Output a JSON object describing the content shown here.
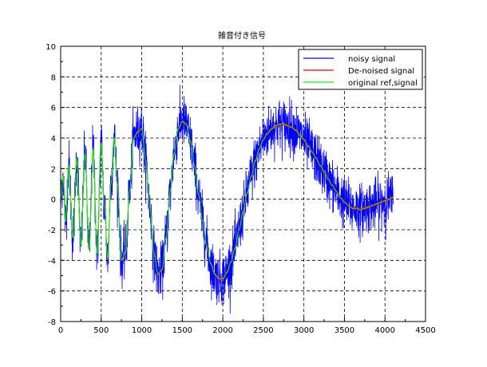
{
  "chart_data": {
    "type": "line",
    "title": "雑音付き信号",
    "xlabel": "",
    "ylabel": "",
    "xlim": [
      0,
      4500
    ],
    "ylim": [
      -8,
      10
    ],
    "x_ticks": [
      0,
      500,
      1000,
      1500,
      2000,
      2500,
      3000,
      3500,
      4000,
      4500
    ],
    "y_ticks": [
      -8,
      -6,
      -4,
      -2,
      0,
      2,
      4,
      6,
      8,
      10
    ],
    "grid": true,
    "legend_position": "top-right",
    "series": [
      {
        "name": "noisy signal",
        "color": "#0000ff",
        "noise_amplitude": 1.1,
        "x": [
          0,
          30,
          60,
          100,
          150,
          200,
          250,
          300,
          350,
          400,
          450,
          500,
          540,
          580,
          620,
          660,
          700,
          750,
          800,
          850,
          900,
          950,
          1000,
          1050,
          1100,
          1150,
          1200,
          1250,
          1300,
          1350,
          1400,
          1450,
          1500,
          1550,
          1600,
          1650,
          1700,
          1750,
          1800,
          1850,
          1900,
          1950,
          2000,
          2050,
          2100,
          2150,
          2200,
          2250,
          2300,
          2350,
          2400,
          2450,
          2500,
          2550,
          2600,
          2650,
          2700,
          2750,
          2800,
          2850,
          2900,
          2950,
          3000,
          3050,
          3100,
          3150,
          3200,
          3250,
          3300,
          3350,
          3400,
          3450,
          3500,
          3550,
          3600,
          3650,
          3700,
          3750,
          3800,
          3850,
          3900,
          3950,
          4000,
          4050,
          4100
        ],
        "y": [
          0,
          1.5,
          -1.5,
          2.2,
          -2.5,
          2.7,
          -3,
          3,
          -3.3,
          3.3,
          -3.6,
          3.7,
          -0.5,
          -3.9,
          1.0,
          4.0,
          1.0,
          -4.0,
          -3.5,
          0.5,
          4.0,
          4.4,
          4.6,
          2.5,
          -0.5,
          -3.5,
          -4.9,
          -4.6,
          -2.5,
          0.5,
          3.0,
          4.6,
          5.1,
          4.9,
          3.8,
          2.2,
          0.3,
          -1.4,
          -3.0,
          -4.2,
          -4.9,
          -5.2,
          -5.2,
          -4.8,
          -4.1,
          -3.2,
          -2.0,
          -0.8,
          0.4,
          1.5,
          2.5,
          3.3,
          3.9,
          4.3,
          4.6,
          4.8,
          4.9,
          4.9,
          4.8,
          4.7,
          4.5,
          4.2,
          3.9,
          3.5,
          3.1,
          2.7,
          2.2,
          1.8,
          1.3,
          0.9,
          0.5,
          0.1,
          -0.2,
          -0.4,
          -0.6,
          -0.6,
          -0.7,
          -0.6,
          -0.5,
          -0.4,
          -0.3,
          -0.2,
          -0.1,
          0,
          0.1
        ]
      },
      {
        "name": "De-noised signal",
        "color": "#ff0000",
        "x": [
          0,
          30,
          60,
          100,
          150,
          200,
          250,
          300,
          350,
          400,
          450,
          500,
          540,
          580,
          620,
          660,
          700,
          750,
          800,
          850,
          900,
          950,
          1000,
          1050,
          1100,
          1150,
          1200,
          1250,
          1300,
          1350,
          1400,
          1450,
          1500,
          1550,
          1600,
          1650,
          1700,
          1750,
          1800,
          1850,
          1900,
          1950,
          2000,
          2050,
          2100,
          2150,
          2200,
          2250,
          2300,
          2350,
          2400,
          2450,
          2500,
          2550,
          2600,
          2650,
          2700,
          2750,
          2800,
          2850,
          2900,
          2950,
          3000,
          3050,
          3100,
          3150,
          3200,
          3250,
          3300,
          3350,
          3400,
          3450,
          3500,
          3550,
          3600,
          3650,
          3700,
          3750,
          3800,
          3850,
          3900,
          3950,
          4000,
          4050,
          4100
        ],
        "y": [
          0,
          1.5,
          -1.5,
          2.2,
          -2.5,
          2.7,
          -3,
          3,
          -3.3,
          3.3,
          -3.6,
          3.7,
          -0.5,
          -3.9,
          1.0,
          4.0,
          1.0,
          -4.0,
          -3.5,
          0.5,
          4.0,
          4.4,
          4.6,
          2.5,
          -0.5,
          -3.5,
          -4.9,
          -4.6,
          -2.5,
          0.5,
          3.0,
          4.6,
          5.1,
          4.9,
          3.8,
          2.2,
          0.3,
          -1.4,
          -3.0,
          -4.2,
          -4.9,
          -5.2,
          -5.2,
          -4.8,
          -4.1,
          -3.2,
          -2.0,
          -0.8,
          0.4,
          1.5,
          2.5,
          3.3,
          3.9,
          4.3,
          4.6,
          4.8,
          4.9,
          4.9,
          4.8,
          4.7,
          4.5,
          4.2,
          3.9,
          3.5,
          3.1,
          2.7,
          2.2,
          1.8,
          1.3,
          0.9,
          0.5,
          0.1,
          -0.2,
          -0.4,
          -0.6,
          -0.6,
          -0.7,
          -0.6,
          -0.5,
          -0.4,
          -0.3,
          -0.2,
          -0.1,
          0,
          0.1
        ]
      },
      {
        "name": "original ref,signal",
        "color": "#00ff00",
        "x": [
          0,
          30,
          60,
          100,
          150,
          200,
          250,
          300,
          350,
          400,
          450,
          500,
          540,
          580,
          620,
          660,
          700,
          750,
          800,
          850,
          900,
          950,
          1000,
          1050,
          1100,
          1150,
          1200,
          1250,
          1300,
          1350,
          1400,
          1450,
          1500,
          1550,
          1600,
          1650,
          1700,
          1750,
          1800,
          1850,
          1900,
          1950,
          2000,
          2050,
          2100,
          2150,
          2200,
          2250,
          2300,
          2350,
          2400,
          2450,
          2500,
          2550,
          2600,
          2650,
          2700,
          2750,
          2800,
          2850,
          2900,
          2950,
          3000,
          3050,
          3100,
          3150,
          3200,
          3250,
          3300,
          3350,
          3400,
          3450,
          3500,
          3550,
          3600,
          3650,
          3700,
          3750,
          3800,
          3850,
          3900,
          3950,
          4000,
          4050,
          4100
        ],
        "y": [
          0,
          1.5,
          -1.5,
          2.2,
          -2.5,
          2.7,
          -3,
          3,
          -3.3,
          3.3,
          -3.6,
          3.7,
          -0.5,
          -3.9,
          1.0,
          4.0,
          1.0,
          -4.0,
          -3.5,
          0.5,
          4.0,
          4.4,
          4.6,
          2.5,
          -0.5,
          -3.5,
          -4.9,
          -4.6,
          -2.5,
          0.5,
          3.0,
          4.6,
          5.1,
          4.9,
          3.8,
          2.2,
          0.3,
          -1.4,
          -3.0,
          -4.2,
          -4.9,
          -5.2,
          -5.2,
          -4.8,
          -4.1,
          -3.2,
          -2.0,
          -0.8,
          0.4,
          1.5,
          2.5,
          3.3,
          3.9,
          4.3,
          4.6,
          4.8,
          4.9,
          4.9,
          4.8,
          4.7,
          4.5,
          4.2,
          3.9,
          3.5,
          3.1,
          2.7,
          2.2,
          1.8,
          1.3,
          0.9,
          0.5,
          0.1,
          -0.2,
          -0.4,
          -0.6,
          -0.6,
          -0.7,
          -0.6,
          -0.5,
          -0.4,
          -0.3,
          -0.2,
          -0.1,
          0,
          0.1
        ]
      }
    ]
  }
}
